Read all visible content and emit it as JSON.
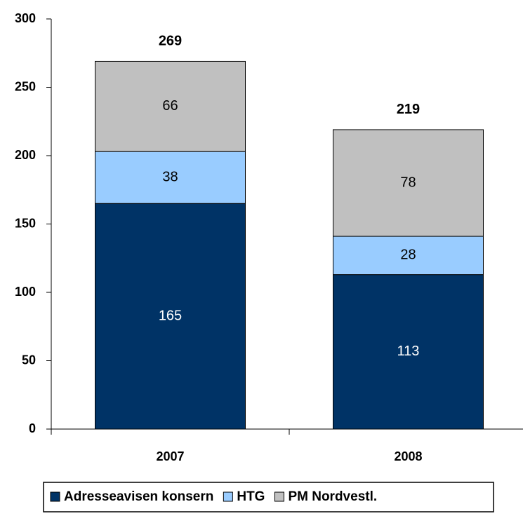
{
  "chart_data": {
    "type": "stacked_bar",
    "categories": [
      "2007",
      "2008"
    ],
    "series": [
      {
        "name": "Adresseavisen konsern",
        "color": "#003366",
        "values": [
          165,
          113
        ]
      },
      {
        "name": "HTG",
        "color": "#99ccff",
        "values": [
          38,
          28
        ]
      },
      {
        "name": "PM Nordvestl.",
        "color": "#c0c0c0",
        "values": [
          66,
          78
        ]
      }
    ],
    "totals": [
      269,
      219
    ],
    "ylim": [
      0,
      300
    ],
    "yticks": [
      0,
      50,
      100,
      150,
      200,
      250,
      300
    ],
    "grid": false,
    "legend": "bottom"
  }
}
